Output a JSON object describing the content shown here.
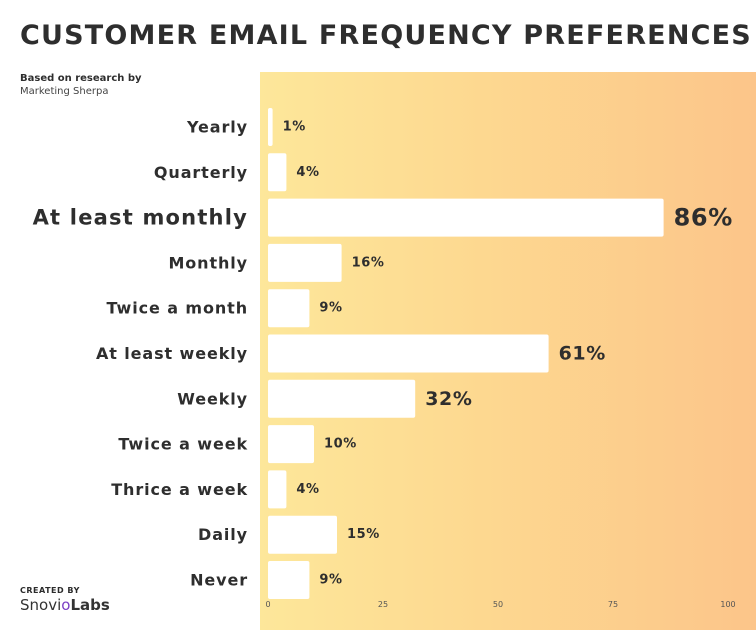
{
  "title": "CUSTOMER EMAIL FREQUENCY PREFERENCES",
  "subtitle": {
    "line1": "Based on research by",
    "line2": "Marketing Sherpa"
  },
  "credit": {
    "created_by": "CREATED BY",
    "brand_main": "Snovi",
    "brand_o": "o",
    "brand_tail": "Labs"
  },
  "colors": {
    "bar": "#ffffff",
    "text": "#2e2e2e",
    "panel_left": "#fde79a",
    "panel_right": "#fcc58a"
  },
  "chart_data": {
    "type": "bar",
    "orientation": "horizontal",
    "categories": [
      "Yearly",
      "Quarterly",
      "At least monthly",
      "Monthly",
      "Twice a month",
      "At least weekly",
      "Weekly",
      "Twice a week",
      "Thrice a week",
      "Daily",
      "Never"
    ],
    "values": [
      1,
      4,
      86,
      16,
      9,
      61,
      32,
      10,
      4,
      15,
      9
    ],
    "value_labels": [
      "1%",
      "4%",
      "86%",
      "16%",
      "9%",
      "61%",
      "32%",
      "10%",
      "4%",
      "15%",
      "9%"
    ],
    "emphasis": [
      false,
      false,
      true,
      false,
      false,
      false,
      false,
      false,
      false,
      false,
      false
    ],
    "xlim": [
      0,
      100
    ],
    "xticks": [
      0,
      25,
      50,
      75,
      100
    ],
    "grid": false,
    "legend": "none"
  }
}
